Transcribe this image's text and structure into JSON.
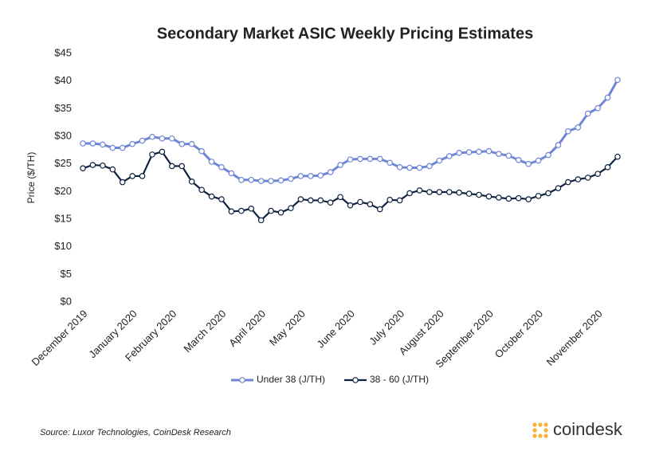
{
  "chart_data": {
    "type": "line",
    "title": "Secondary Market ASIC Weekly Pricing Estimates",
    "y_label": "Price ($/TH)",
    "categories": [
      "December 2019",
      null,
      null,
      null,
      null,
      "January 2020",
      null,
      null,
      null,
      "February 2020",
      null,
      null,
      null,
      null,
      "March 2020",
      null,
      null,
      null,
      "April 2020",
      null,
      null,
      null,
      "May 2020",
      null,
      null,
      null,
      null,
      "June 2020",
      null,
      null,
      null,
      null,
      "July 2020",
      null,
      null,
      null,
      "August 2020",
      null,
      null,
      null,
      null,
      "September 2020",
      null,
      null,
      null,
      null,
      "October 2020",
      null,
      null,
      null,
      null,
      null,
      "November 2020",
      null,
      null
    ],
    "series": [
      {
        "name": "Under 38 (J/TH)",
        "color": "#6f86d6",
        "values": [
          28.7,
          28.7,
          28.5,
          27.9,
          27.9,
          28.6,
          29.2,
          29.9,
          29.6,
          29.6,
          28.6,
          28.6,
          27.3,
          25.4,
          24.4,
          23.3,
          22.1,
          22.1,
          21.9,
          21.9,
          22.0,
          22.3,
          22.8,
          22.8,
          22.9,
          23.5,
          24.8,
          25.8,
          25.9,
          25.9,
          25.9,
          25.2,
          24.4,
          24.3,
          24.3,
          24.6,
          25.6,
          26.4,
          27.0,
          27.1,
          27.2,
          27.3,
          26.8,
          26.5,
          25.7,
          25.0,
          25.6,
          26.6,
          28.4,
          30.9,
          31.6,
          34.1,
          35.1,
          37.0,
          40.2
        ]
      },
      {
        "name": "38 - 60 (J/TH)",
        "color": "#0d2240",
        "values": [
          24.2,
          24.8,
          24.7,
          24.0,
          21.7,
          22.8,
          22.8,
          26.7,
          27.2,
          24.6,
          24.6,
          21.8,
          20.3,
          19.1,
          18.6,
          16.4,
          16.5,
          16.9,
          14.8,
          16.5,
          16.2,
          17.0,
          18.6,
          18.4,
          18.4,
          18.0,
          19.0,
          17.5,
          18.1,
          17.7,
          16.8,
          18.5,
          18.4,
          19.7,
          20.2,
          19.9,
          19.9,
          19.9,
          19.8,
          19.6,
          19.4,
          19.1,
          18.9,
          18.7,
          18.8,
          18.6,
          19.2,
          19.7,
          20.6,
          21.7,
          22.2,
          22.5,
          23.2,
          24.4,
          26.3
        ]
      }
    ],
    "ylim": [
      0,
      45
    ],
    "yticks": [
      {
        "value": 0,
        "label": "$0"
      },
      {
        "value": 5,
        "label": "$5"
      },
      {
        "value": 10,
        "label": "$10"
      },
      {
        "value": 15,
        "label": "$15"
      },
      {
        "value": 20,
        "label": "$20"
      },
      {
        "value": 25,
        "label": "$25"
      },
      {
        "value": 30,
        "label": "$30"
      },
      {
        "value": 35,
        "label": "$35"
      },
      {
        "value": 40,
        "label": "$40"
      },
      {
        "value": 45,
        "label": "$45"
      }
    ],
    "grid": false,
    "legend": "bottom",
    "source": "Source: Luxor Technologies, CoinDesk Research",
    "logo": "coindesk"
  }
}
